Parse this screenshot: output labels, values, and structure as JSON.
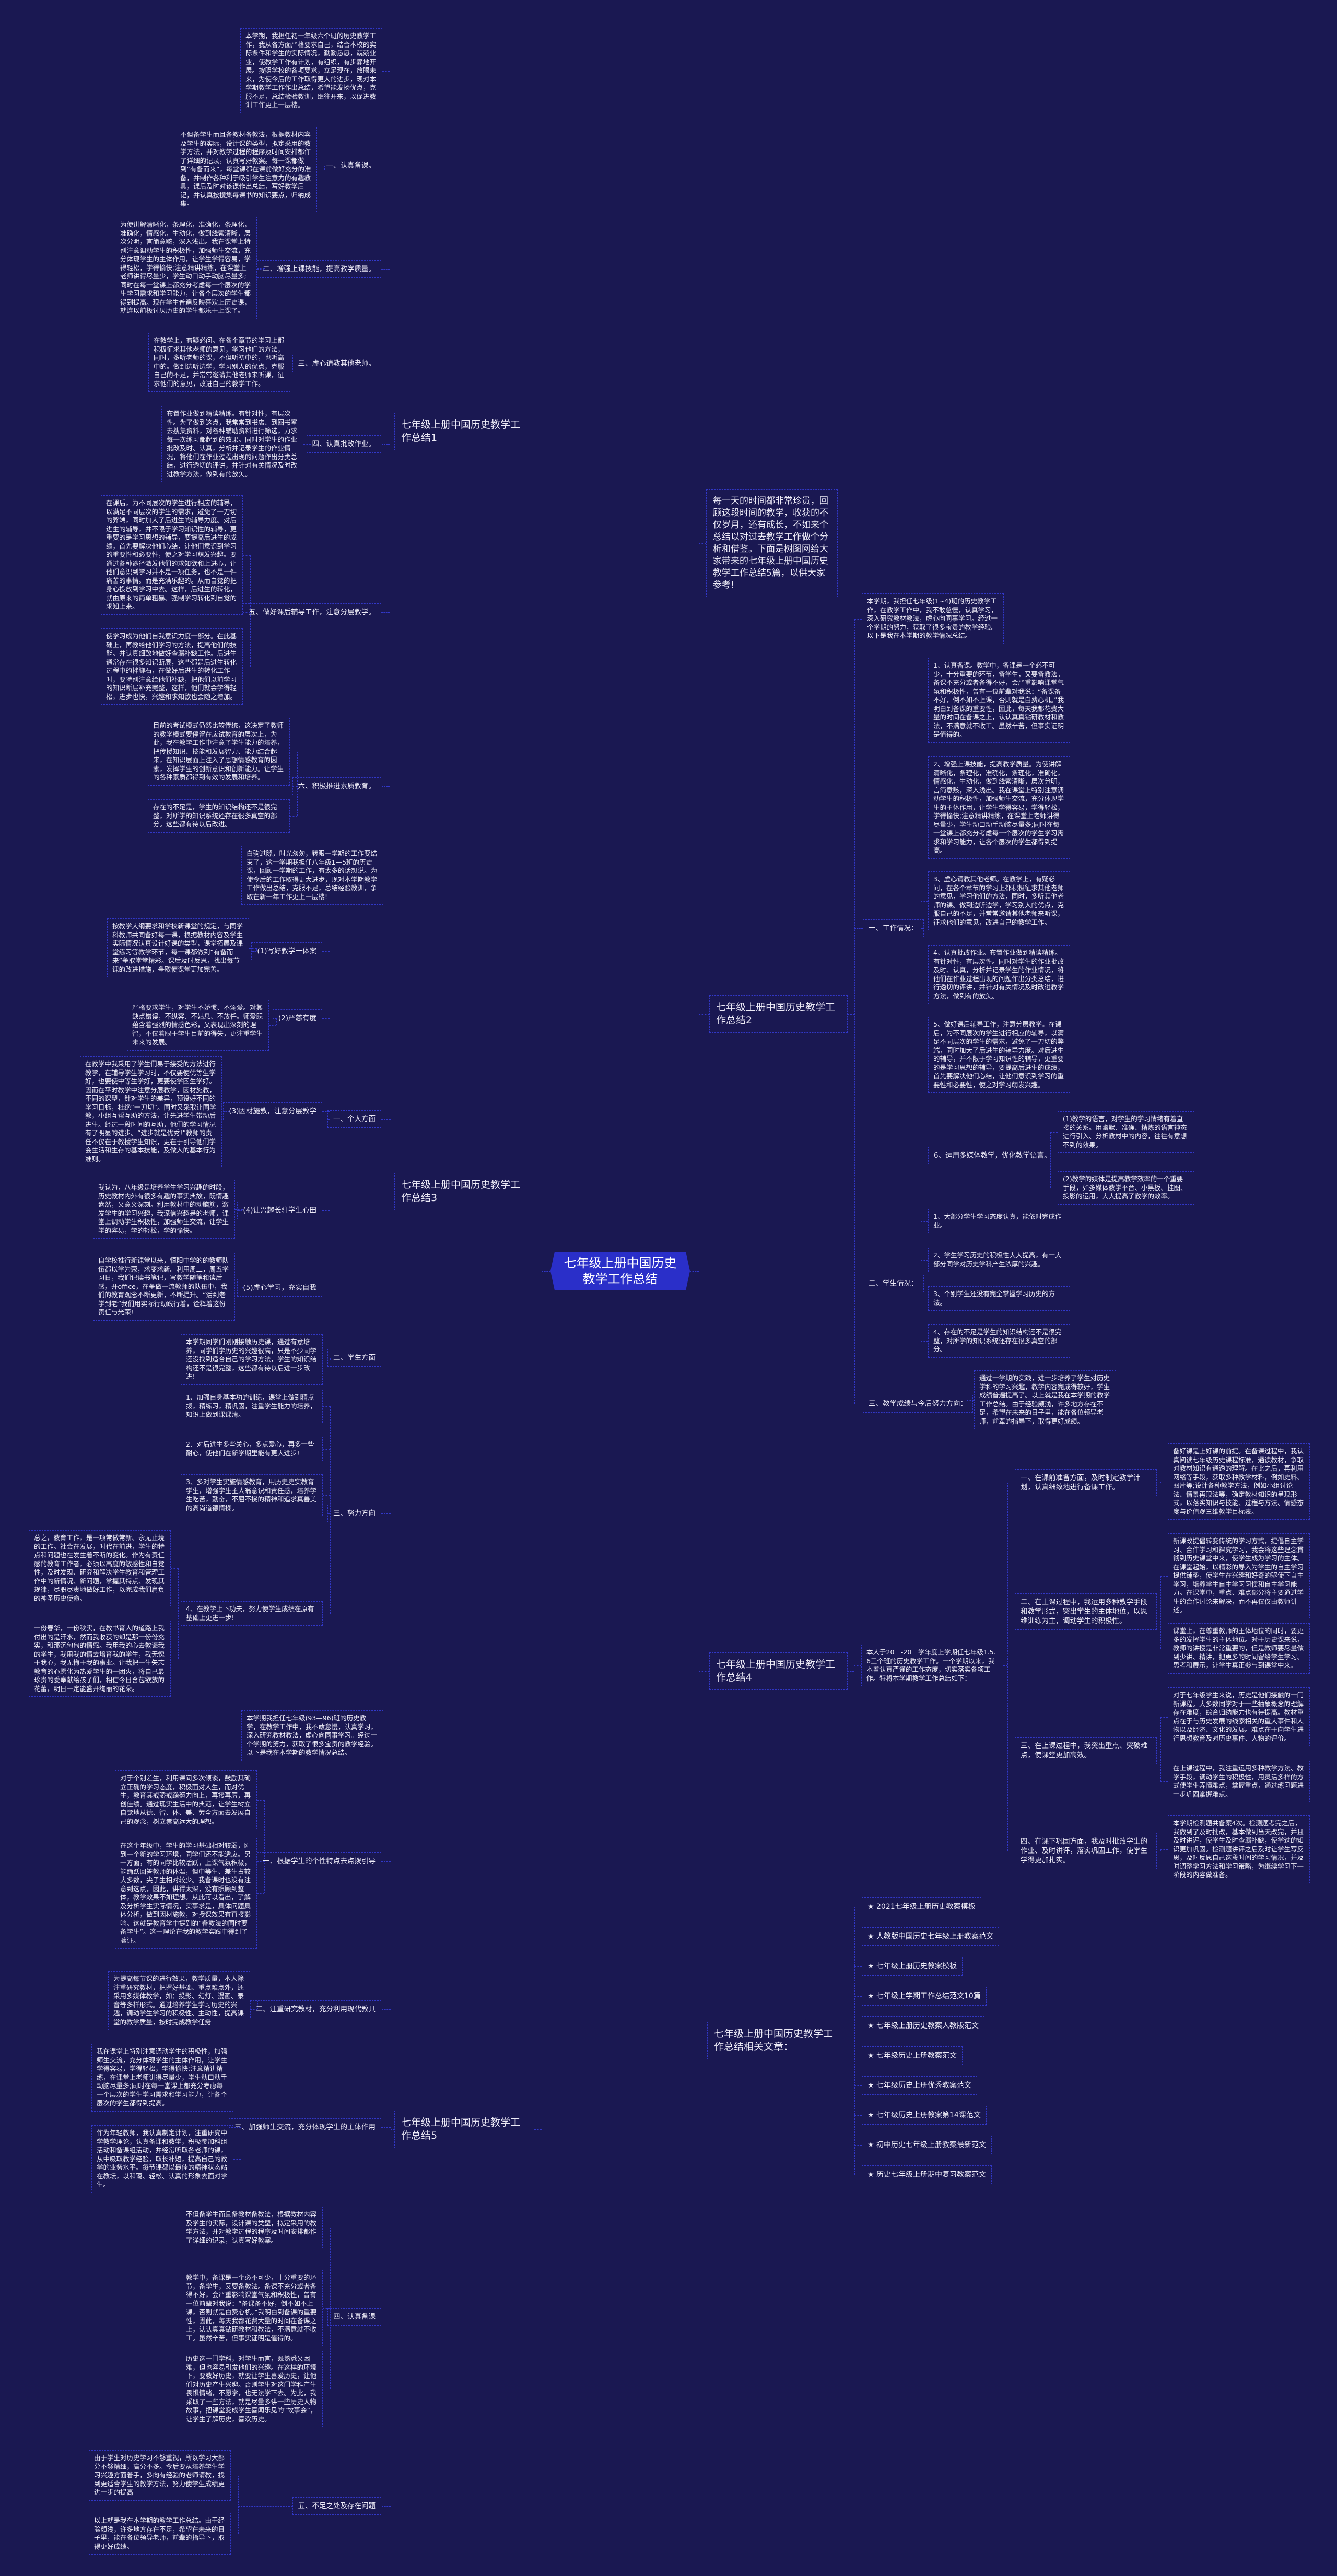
{
  "map": {
    "center": "七年级上册中国历史教学工作总结",
    "branches": [
      {
        "text": "每一天的时间都非常珍贵，回顾这段时间的教学，收获的不仅岁月，还有成长，不如来个总结以对过去教学工作做个分析和借鉴。下面是树图网给大家带来的七年级上册中国历史教学工作总结5篇，以供大家参考!"
      },
      {
        "text": "七年级上册中国历史教学工作总结1",
        "children": [
          {
            "text": "本学期，我担任初一年级六个班的历史教学工作，我从各方面严格要求自己，结合本校的实际条件和学生的实际情况，勤勤恳恳，兢兢业业，使教学工作有计划，有组织，有步骤地开展。按照学校的各项要求，立足现在，放眼未来，为使今后的工作取得更大的进步，现对本学期教学工作作出总结，希望能发扬优点，克服不足，总结检验教训，继往开来，以促进教训工作更上一层楼。"
          },
          {
            "text": "一、认真备课。",
            "children": [
              {
                "text": "不但备学生而且备教材备教法，根据教材内容及学生的实际，设计课的类型，拟定采用的教学方法，并对教学过程的程序及时间安排都作了详细的记录，认真写好教案。每一课都做到“有备而来”，每堂课都在课前做好充分的准备，并制作各种利于吸引学生注意力的有趣教具，课后及时对该课作出总结，写好教学后记，并认真按搜集每课书的知识要点，归纳成集。"
              }
            ]
          },
          {
            "text": "二、增强上课技能，提高教学质量。",
            "children": [
              {
                "text": "为使讲解清晰化，条理化，准确化，条理化，准确化，情感化，生动化，做到线索清晰，层次分明，言简意赅，深入浅出。我在课堂上特别注意调动学生的积极性，加强师生交流，充分体现学生的主体作用，让学生学得容易，学得轻松，学得愉快;注意精讲精练，在课堂上老师讲得尽量少，学生动口动手动脑尽量多;同时在每一堂课上都充分考虑每一个层次的学生学习需求和学习能力，让各个层次的学生都得到提高。现在学生普遍反映喜欢上历史课，就连以前极讨厌历史的学生都乐于上课了。"
              }
            ]
          },
          {
            "text": "三、虚心请教其他老师。",
            "children": [
              {
                "text": "在教学上，有疑必问。在各个章节的学习上都积极征求其他老师的意见，学习他们的方法，同时，多听老师的课，不但听初中的，也听高中的。做到边听边学，学习别人的优点，克服自己的不足，并常常邀请其他老师来听课，征求他们的意见，改进自己的教学工作。"
              }
            ]
          },
          {
            "text": "四、认真批改作业。",
            "children": [
              {
                "text": "布置作业做到精读精练。有针对性，有层次性。为了做到这点，我常常到书店、到图书室去搜集资料，对各种辅助资料进行筛选，力求每一次练习都起到的效果。同时对学生的作业批改及时、认真，分析并记录学生的作业情况，将他们在作业过程出现的问题作出分类总结，进行透切的评讲，并针对有关情况及时改进教学方法，做到有的放矢。"
              }
            ]
          },
          {
            "text": "五、做好课后辅导工作，注意分层教学。",
            "children": [
              {
                "text": "在课后，为不同层次的学生进行相应的辅导，以满足不同层次的学生的需求，避免了一刀切的弊端，同时加大了后进生的辅导力度。对后进生的辅导，并不限于学习知识性的辅导，更重要的是学习思想的辅导，要提高后进生的成绩，首先要解决他们心结，让他们意识到学习的重要性和必要性，使之对学习萌发兴趣。要通过各种途径激发他们的求知欲和上进心，让他们意识到学习并不是一项任务，也不是一件痛苦的事情。而是充满乐趣的。从而自觉的把身心投放到学习中去。这样，后进生的转化，就由原来的简单粗暴、强制学习转化到自觉的求知上来。"
              },
              {
                "text": "使学习成为他们自我意识力度一部分。在此基础上，再教给他们学习的方法，提高他们的技能。并认真细致地做好查漏补缺工作。后进生通常存在很多知识断层，这些都是后进生转化过程中的拌脚石，在做好后进生的转化工作时，要特别注意给他们补缺，把他们以前学习的知识断层补充完整，这样，他们就会学得轻松，进步也快，兴趣和求知欲也会随之增加。"
              }
            ]
          },
          {
            "text": "六、积极推进素质教育。",
            "children": [
              {
                "text": "目前的考试模式仍然比较传统，这决定了教师的教学模式要停留在应试教育的层次上，为此，我在教学工作中注意了学生能力的培养，把传授知识、技能和发展智力、能力结合起来，在知识层面上注入了思想情感教育的因素，发挥学生的创新意识和创新能力。让学生的各种素质都得到有效的发展和培养。"
              },
              {
                "text": "存在的不足是，学生的知识结构还不是很完整，对所学的知识系统还存在很多真空的部分。这些都有待以后改进。"
              }
            ]
          }
        ]
      },
      {
        "text": "七年级上册中国历史教学工作总结2",
        "children": [
          {
            "text": "本学期，我担任七年级(1~4)班的历史教学工作，在教学工作中，我不敢怠慢，认真学习，深入研究教材教法，虚心向同事学习。经过一个学期的努力，获取了很多宝贵的教学经验。以下是我在本学期的教学情况总结。"
          },
          {
            "text": "一、工作情况：",
            "children": [
              {
                "text": "1、认真备课。教学中，备课是一个必不可少，十分重要的环节，备学生，又要备教法。备课不充分或者备得不好，会严重影响课堂气氛和积极性，曾有一位前辈对我说：“备课备不好，倒不如不上课，否则就是白费心机。”我明白到备课的重要性，因此，每天我都花费大量的时间在备课之上，认认真真钻研教材和教法，不满意就不收工。虽然辛苦，但事实证明是值得的。"
              },
              {
                "text": "2、增强上课技能，提高教学质量。为使讲解清晰化，条理化，准确化，条理化，准确化，情感化，生动化，做到线索清晰，层次分明，言简意赅，深入浅出。我在课堂上特别注意调动学生的积极性，加强师生交流，充分体现学生的主体作用，让学生学得容易，学得轻松，学得愉快;注意精讲精练，在课堂上老师讲得尽量少，学生动口动手动脑尽量多;同时在每一堂课上都充分考虑每一个层次的学生学习需求和学习能力，让各个层次的学生都得到提高。"
              },
              {
                "text": "3、虚心请教其他老师。在教学上，有疑必问，在各个章节的学习上都积极征求其他老师的意见，学习他们的方法，同时，多听其他老师的课。做到边听边学，学习别人的优点，克服自己的不足，并常常邀请其他老师来听课，征求他们的意见，改进自己的教学工作。"
              },
              {
                "text": "4、认真批改作业。布置作业做到精读精练。有针对性，有层次性。同时对学生的作业批改及时、认真，分析并记录学生的作业情况，将他们在作业过程出现的问题作出分类总结，进行透切的评讲，并针对有关情况及时改进教学方法，做到有的放矢。"
              },
              {
                "text": "5、做好课后辅导工作，注意分层教学。在课后，为不同层次的学生进行相应的辅导，以满足不同层次的学生的需求，避免了一刀切的弊端，同时加大了后进生的辅导力度。对后进生的辅导，并不限于学习知识性的辅导，更重要的是学习思想的辅导，要提高后进生的成绩，首先要解决他们心结，让他们意识到学习的重要性和必要性，使之对学习萌发兴趣。"
              },
              {
                "text": "6、运用多媒体教学，优化教学语言。",
                "children": [
                  {
                    "text": "(1)教学的语言，对学生的学习情绪有着直接的关系。用幽默、准确、精炼的语言神态进行引入、分析教材中的内容，往往有意想不到的效果。"
                  },
                  {
                    "text": "(2)教学的媒体是提高教学效率的一个重要手段，如多媒体教学平台、小黑板、挂图、投影的运用，大大提高了教学的效率。"
                  }
                ]
              }
            ]
          },
          {
            "text": "二、学生情况：",
            "children": [
              {
                "text": "1、大部分学生学习态度认真，能依时完成作业。"
              },
              {
                "text": "2、学生学习历史的积极性大大提高，有一大部分同学对历史学科产生浓厚的兴趣。"
              },
              {
                "text": "3、个别学生还没有完全掌握学习历史的方法。"
              },
              {
                "text": "4、存在的不足是学生的知识结构还不是很完整，对所学的知识系统还存在很多真空的部分。"
              }
            ]
          },
          {
            "text": "三、教学成绩与今后努力方向：",
            "children": [
              {
                "text": "通过一学期的实践，进一步培养了学生对历史学科的学习兴趣，教学内容完成得较好，学生成绩普遍提高了。以上就是我在本学期的教学工作总结。由于经验颇浅，许多地方存在不足，希望在未来的日子里，能在各位领导老师，前辈的指导下，取得更好成绩。"
              }
            ]
          }
        ]
      },
      {
        "text": "七年级上册中国历史教学工作总结3",
        "children": [
          {
            "text": "白驹过隙，时光匆匆，转眼一学期的工作要结束了，这一学期我担任八年级1—5班的历史课，回顾一学期的工作，有太多的话想说。为使今后的工作取得更大进步，现对本学期教学工作做出总结，克服不足，总结经验教训，争取在新一年工作更上一层楼!"
          },
          {
            "text": "一、个人方面",
            "children": [
              {
                "text": "(1)写好教学一体案",
                "children": [
                  {
                    "text": "按教学大纲要求和学校新课堂的规定，与同学科教师共同备好每一课，根据教材内容及学生实际情况认真设计好课的类型，课堂拓展及课堂练习等教学环节，每一课都做到“有备而来”争取堂堂精彩。课后及时反思，找出每节课的改进措施，争取使课堂更加完善。"
                  }
                ]
              },
              {
                "text": "(2)严慈有度",
                "children": [
                  {
                    "text": "严格要求学生，对学生不娇惯、不溺爱。对其缺点错误，不纵容、不姑息、不放任。师爱既蕴含着强烈的情感色彩，又表现出深刻的理智，不仅着眼于学生目前的得失，更注重学生未来的发展。"
                  }
                ]
              },
              {
                "text": "(3)因材施教，注意分层教学",
                "children": [
                  {
                    "text": "在教学中我采用了学生们易于接受的方法进行教学，在辅导学生学习时，不仅要使优等生学好，也要使中等生学好，更要使学困生学好。因而在平时教学中注意分层教学，因材施教，不同的课型，针对学生的差异，预设好不同的学习目标，杜绝“一刀切”。同时又采取让同学教，小组互帮互助的方法，让先进学生带动后进生。经过一段时间的互助，他们的学习情况有了明显的进步。“进步就是优秀!”教师的责任不仅在于教授学生知识，更在于引导他们学会生活和生存的基本技能，及做人的基本行为准则。"
                  }
                ]
              },
              {
                "text": "(4)让兴趣长驻学生心田",
                "children": [
                  {
                    "text": "我认为，八年级是培养学生学习兴趣的时段，历史教材内外有很多有趣的事实典故，既情趣盎然，又意义深刻。利用教材中的动脑筋，激发学生的学习兴趣，我深信兴趣是的老师，课堂上调动学生积极性，加强师生交流，让学生学的容易，学的轻松，学的愉快。"
                  }
                ]
              },
              {
                "text": "(5)虚心学习，充实自我",
                "children": [
                  {
                    "text": "自学校推行新课堂以来，恒阳中学的的教师队伍都以学为荣，求变求新。利用周二，周五学习日，我们记读书笔记，写教学随笔和读后感，开office，在争做一流教师的队伍中，我们的教育观念不断更新，不断提升。“活到老学到老”我们用实际行动践行着，诠释着这份责任与光荣!"
                  }
                ]
              }
            ]
          },
          {
            "text": "二、学生方面",
            "children": [
              {
                "text": "本学期同学们刚刚接触历史课，通过有意培养，同学们学历史的兴趣很高，只是不少同学还没找到适合自己的学习方法，学生的知识结构还不是很完整，这些都有待以后进一步改进!"
              }
            ]
          },
          {
            "text": "三、努力方向",
            "children": [
              {
                "text": "1、加强自身基本功的训练，课堂上做到精点拨，精练习，精巩固，注重学生能力的培养，知识上做到课课清。"
              },
              {
                "text": "2、对后进生多些关心，多点爱心，再多一些耐心，使他们在新学期里能有更大进步!"
              },
              {
                "text": "3、多对学生实施情感教育，用历史史实教育学生，增强学生主人翁意识和责任感，培养学生吃苦，勤奋，不屈不挠的精神和追求真善美的高尚道德情操。"
              },
              {
                "text": "4、在教学上下功夫，努力使学生成绩在原有基础上更进一步!",
                "children": [
                  {
                    "text": "总之，教育工作，是一项常做常新、永无止境的工作。社会在发展，时代在前进，学生的特点和问题也在发生着不断的变化。作为有责任感的教育工作者，必须以高度的敏感性和自觉性，及时发现、研究和解决学生教育和管理工作中的新情况、新问题，掌握其特点、发现其规律，尽职尽责地做好工作，以完成我们肩负的神圣历史使命。"
                  },
                  {
                    "text": "一份春华，一份秋实，在教书育人的道路上我付出的是汗水，然而我收获的却是那一份份充实，和那沉甸甸的情感。我用我的心去教诲我的学生，我用我的情去培育我的学生，我无愧于我心，我无悔于我的事业。让我把一生矢志教育的心愿化为热爱学生的一团火，将自己最珍贵的爱奉献给孩子们，相信今日含苞欲放的花蕾，明日一定能盛开绚丽的花朵。"
                  }
                ]
              }
            ]
          }
        ]
      },
      {
        "text": "七年级上册中国历史教学工作总结4",
        "children": [
          {
            "text": "本人于20__-20__学年度上学期任七年级1.5.6三个班的历史教学工作。一个学期以来，我本着认真严谨的工作态度，切实落实各项工作。特将本学期教学工作总结如下：",
            "children": [
              {
                "text": "一、在课前准备方面，及时制定教学计划，认真细致地进行备课工作。",
                "children": [
                  {
                    "text": "备好课是上好课的前提。在备课过程中，我认真阅读七年级历史课程标准，通读教材，争取对教材知识有通透的理解。在此之后，再利用网络等手段，获取多种教学材料，例如史料、图片等;设计各种教学方法，例如小组讨论法、情景再现法等，确定教材知识的呈现形式，以落实知识与技能、过程与方法、情感态度与价值观三维教学目标表。"
                  }
                ]
              },
              {
                "text": "二、在上课过程中，我运用多种教学手段和教学形式，突出学生的主体地位，以思维训练为主，调动学生的积极性。",
                "children": [
                  {
                    "text": "新课改提倡转变传统的学习方式，提倡自主学习、合作学习和探究学习，我会将这些理念贯彻到历史课堂中来，使学生成为学习的主体。在课堂起始，以精彩的导入为学生的自主学习提供铺垫，使学生在兴趣和好奇的驱使下自主学习，培养学生自主学习习惯和自主学习能力。在课堂中，重点、难点部分将主要通过学生的合作讨论来解决，而不再仅仅由教师讲述。"
                  },
                  {
                    "text": "课堂上，在尊重教师的主体地位的同时，要更多的发挥学生的主体地位。对于历史课来说，教师的讲授是非常重要的，但是教师要尽量做到少讲、精讲，把更多的时间留给学生学习、思考和展示，让学生真正参与到课堂中来。"
                  }
                ]
              },
              {
                "text": "三、在上课过程中，我突出重点、突破难点，使课堂更加高效。",
                "children": [
                  {
                    "text": "对于七年级学生来说，历史是他们接触的一门新课程。大多数同学对于一些抽象概念的理解存在难度，综合归纳能力也有待提高。教材重点在于与历史发展的线索相关的重大事件和人物以及经济、文化的发展。难点在于向学生进行思想教育及对历史事件、人物的评价。"
                  },
                  {
                    "text": "在上课过程中，我注重运用多种教学方法、教学手段，调动学生的积极性，用灵活多样的方式使学生弄懂难点，掌握重点，通过练习题进一步巩固掌握难点。"
                  }
                ]
              },
              {
                "text": "四、在课下巩固方面，我及时批改学生的作业、及时讲评，落实巩固工作，使学生学得更加扎实。",
                "children": [
                  {
                    "text": "本学期检测题共备案4次。检测题考完之后，我做到了及时批改，基本做到当天改完，并且及时讲评，使学生及时查漏补缺，使学过的知识更加巩固。检测题讲评之后及时让学生写反思，及时反思自己这段时间的学习情况，并及时调整学习方法和学习策略，为继续学习下一阶段的内容做准备。"
                  }
                ]
              }
            ]
          }
        ]
      },
      {
        "text": "七年级上册中国历史教学工作总结5",
        "children": [
          {
            "text": "本学期我担任七年级(93—96)班的历史教学，在教学工作中，我不敢怠慢，认真学习，深入研究教材教法，虚心向同事学习。经过一个学期的努力，获取了很多宝贵的教学经验。以下是我在本学期的教学情况总结。"
          },
          {
            "text": "一、根据学生的个性特点去点拨引导",
            "children": [
              {
                "text": "对于个别差生，利用课间多次倾谈，鼓励其确立正确的学习态度，积极面对人生，而对优生，教育其戒骄戒躁努力向上，再接再厉，再创佳绩。通过现实生活中的典范，让学生树立自觉地从德、智、体、美、劳全方面去发展自己的观念，树立崇高远大的理想。"
              },
              {
                "text": "在这个年级中，学生的学习基础相对较弱，刚到一个新的学习环境，同学们还不能适应。另一方面，有的同学比较活跃，上课气氛积极，能踊跃回答教师的体温，但中等生、差生占较大多数，尖子生相对较少。我备课时也没有注意到这点，因此，讲得太深，没有照顾到整体，教学效果不如理想。从此可以看出，了解及分析学生实际情况，实事求是，具体问题具体分析，做到因材施教，对授课效果有直接影响。这就是教育学中提到的“备教法的同时要备学生”。这一理论在我的教学实践中得到了验证。"
              }
            ]
          },
          {
            "text": "二、注重研究教材，充分利用现代教具",
            "children": [
              {
                "text": "为提高每节课的进行效果，教学质量，本人除注重研究教材，把握好基础、重点难点外，还采用多媒体教学，如：投影、幻灯、漫画、录音等多样形式。通过培养学生学习历史的兴趣，调动学生学习的积极性、主动性，提高课堂的教学质量，按时完成教学任务"
              }
            ]
          },
          {
            "text": "三、加强师生交流，充分体现学生的主体作用",
            "children": [
              {
                "text": "我在课堂上特别注意调动学生的积极性，加强师生交流，充分体现学生的主体作用，让学生学得容易，学得轻松，学得愉快;注意精讲精练，在课堂上老师讲得尽量少，学生动口动手动脑尽量多;同时在每一堂课上都充分考虑每一个层次的学生学习需求和学习能力，让各个层次的学生都得到提高。"
              },
              {
                "text": "作为年轻教师，我认真制定计划，注重研究中学教学理论，认真备课和教学，积极参加科组活动和备课组活动，并经常听取各老师的课，从中吸取教学经验，取长补短，提高自己的教学的业务水平。每节课都以最佳的精神状态站在教坛，以和蔼、轻松、认真的形象去面对学生。"
              }
            ]
          },
          {
            "text": "四、认真备课",
            "children": [
              {
                "text": "不但备学生而且备教材备教法，根据教材内容及学生的实际，设计课的类型，拟定采用的教学方法，并对教学过程的程序及时间安排都作了详细的记录，认真写好教案。"
              },
              {
                "text": "教学中，备课是一个必不可少，十分重要的环节，备学生，又要备教法。备课不充分或者备得不好，会严重影响课堂气氛和积极性，曾有一位前辈对我说：“备课备不好，倒不如不上课，否则就是白费心机。”我明白到备课的重要性，因此，每天我都花费大量的时间在备课之上，认认真真钻研教材和教法，不满意就不收工。虽然辛苦，但事实证明是值得的。"
              },
              {
                "text": "历史这一门学科，对学生而言，既熟悉又困难，但也容易引发他们的兴趣。在这样的环境下，要教好历史，就要让学生喜爱历史，让他们对历史产生兴趣。否则学生对这门学科产生畏惧情绪，不愿学，也无法学下去。为此，我采取了一些方法，就是尽量多讲一些历史人物故事，把课堂变成学生喜闻乐见的“故事会”，让学生了解历史，喜欢历史。"
              }
            ]
          },
          {
            "text": "五、不足之处及存在问题",
            "children": [
              {
                "text": "由于学生对历史学习不够重视，所以学习大部分不够精细，高分不多。今后要从培养学生学习兴趣方面着手，多向有经验的老师请教，找到更适合学生的教学方法，努力使学生成绩更进一步的提高"
              },
              {
                "text": "以上就是我在本学期的教学工作总结。由于经验颇浅，许多地方存在不足，希望在未来的日子里，能在各位领导老师，前辈的指导下，取得更好成绩。"
              }
            ]
          }
        ]
      },
      {
        "text": "七年级上册中国历史教学工作总结相关文章：",
        "children": [
          {
            "text": "2021七年级上册历史教案模板"
          },
          {
            "text": "人教版中国历史七年级上册教案范文"
          },
          {
            "text": "七年级上册历史教案模板"
          },
          {
            "text": "七年级上学期工作总结范文10篇"
          },
          {
            "text": "七年级上册历史教案人教版范文"
          },
          {
            "text": "七年级历史上册教案范文"
          },
          {
            "text": "七年级历史上册优秀教案范文"
          },
          {
            "text": "七年级历史上册教案第14课范文"
          },
          {
            "text": "初中历史七年级上册教案最新范文"
          },
          {
            "text": "历史七年级上册期中复习教案范文"
          }
        ]
      }
    ]
  },
  "colors": {
    "background": "#1a1852",
    "center_fill": "#2a2fc9",
    "border": "#3238c8",
    "text": "#eceaf6"
  }
}
